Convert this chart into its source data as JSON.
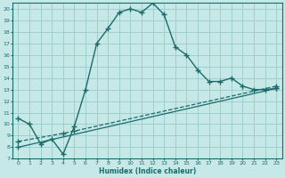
{
  "xlabel": "Humidex (Indice chaleur)",
  "bg_color": "#c6e8e6",
  "grid_color": "#9ecece",
  "line_color": "#1a6b6b",
  "xlim": [
    -0.5,
    23.5
  ],
  "ylim": [
    7,
    20.5
  ],
  "xticks": [
    0,
    1,
    2,
    3,
    4,
    5,
    6,
    7,
    8,
    9,
    10,
    11,
    12,
    13,
    14,
    15,
    16,
    17,
    18,
    19,
    20,
    21,
    22,
    23
  ],
  "yticks": [
    7,
    8,
    9,
    10,
    11,
    12,
    13,
    14,
    15,
    16,
    17,
    18,
    19,
    20
  ],
  "curve1_x": [
    0,
    1,
    2,
    3,
    4,
    5,
    6,
    7,
    8,
    9,
    10,
    11,
    12,
    13,
    14,
    15,
    16,
    17,
    18,
    19,
    20,
    21,
    22,
    23
  ],
  "curve1_y": [
    10.5,
    10.0,
    8.3,
    8.7,
    7.4,
    9.8,
    13.0,
    17.0,
    18.3,
    19.7,
    20.0,
    19.7,
    20.5,
    19.5,
    16.7,
    16.0,
    14.7,
    13.7,
    13.7,
    14.0,
    13.3,
    13.0,
    13.0,
    13.1
  ],
  "curve2_x": [
    0,
    4,
    5,
    23
  ],
  "curve2_y": [
    8.5,
    9.2,
    9.4,
    13.3
  ],
  "curve3_x": [
    0,
    23
  ],
  "curve3_y": [
    8.0,
    13.1
  ]
}
